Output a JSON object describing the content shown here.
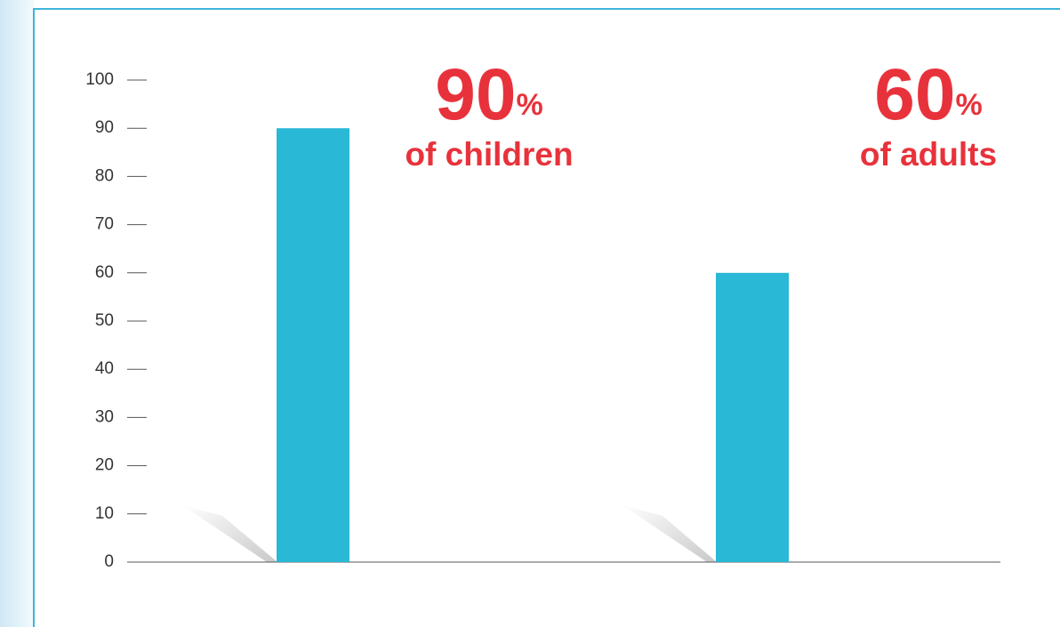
{
  "chart_data": {
    "type": "bar",
    "categories": [
      "of children",
      "of adults"
    ],
    "values": [
      90,
      60
    ],
    "value_labels": [
      "90%",
      "60%"
    ],
    "color": "#29b8d6",
    "label_color": "#e8323b",
    "ylim": [
      0,
      100
    ],
    "yticks": [
      0,
      10,
      20,
      30,
      40,
      50,
      60,
      70,
      80,
      90,
      100
    ]
  }
}
